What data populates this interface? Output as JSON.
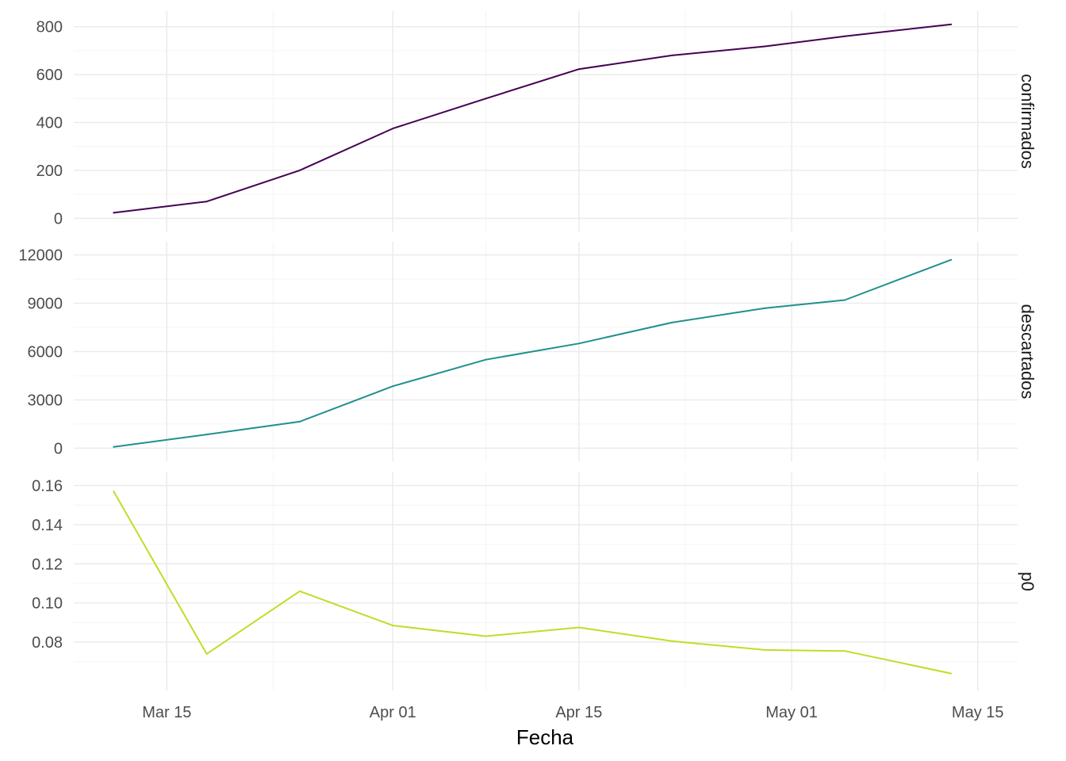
{
  "chart_data": {
    "type": "line",
    "facet": "rows",
    "xlabel": "Fecha",
    "x_ticks": [
      {
        "date": "2020-03-15",
        "label": "Mar 15"
      },
      {
        "date": "2020-04-01",
        "label": "Apr 01"
      },
      {
        "date": "2020-04-15",
        "label": "Apr 15"
      },
      {
        "date": "2020-05-01",
        "label": "May 01"
      },
      {
        "date": "2020-05-15",
        "label": "May 15"
      }
    ],
    "x_minor": [
      "2020-03-23",
      "2020-04-08",
      "2020-04-23",
      "2020-05-08"
    ],
    "xlim": [
      "2020-03-08",
      "2020-05-18"
    ],
    "x": [
      "2020-03-11",
      "2020-03-18",
      "2020-03-25",
      "2020-04-01",
      "2020-04-08",
      "2020-04-15",
      "2020-04-22",
      "2020-04-29",
      "2020-05-05",
      "2020-05-13"
    ],
    "grid": true,
    "panels": [
      {
        "name": "confirmados",
        "color": "#440154",
        "ylim": [
          0,
          810
        ],
        "y_ticks": [
          0,
          200,
          400,
          600,
          800
        ],
        "y_tick_labels": [
          "0",
          "200",
          "400",
          "600",
          "800"
        ],
        "values": [
          23,
          70,
          200,
          375,
          500,
          623,
          680,
          718,
          760,
          810
        ]
      },
      {
        "name": "descartados",
        "color": "#21908C",
        "ylim": [
          0,
          12000
        ],
        "y_ticks": [
          0,
          3000,
          6000,
          9000,
          12000
        ],
        "y_tick_labels": [
          "0",
          "3000",
          "6000",
          "9000",
          "12000"
        ],
        "values": [
          80,
          850,
          1650,
          3850,
          5500,
          6500,
          7800,
          8700,
          9200,
          11700
        ]
      },
      {
        "name": "p0",
        "color": "#BDDF26",
        "ylim": [
          0.062,
          0.16
        ],
        "y_ticks": [
          0.08,
          0.1,
          0.12,
          0.14,
          0.16
        ],
        "y_tick_labels": [
          "0.08",
          "0.10",
          "0.12",
          "0.14",
          "0.16"
        ],
        "values": [
          0.157,
          0.074,
          0.106,
          0.0885,
          0.083,
          0.0875,
          0.0805,
          0.076,
          0.0755,
          0.064
        ]
      }
    ]
  }
}
